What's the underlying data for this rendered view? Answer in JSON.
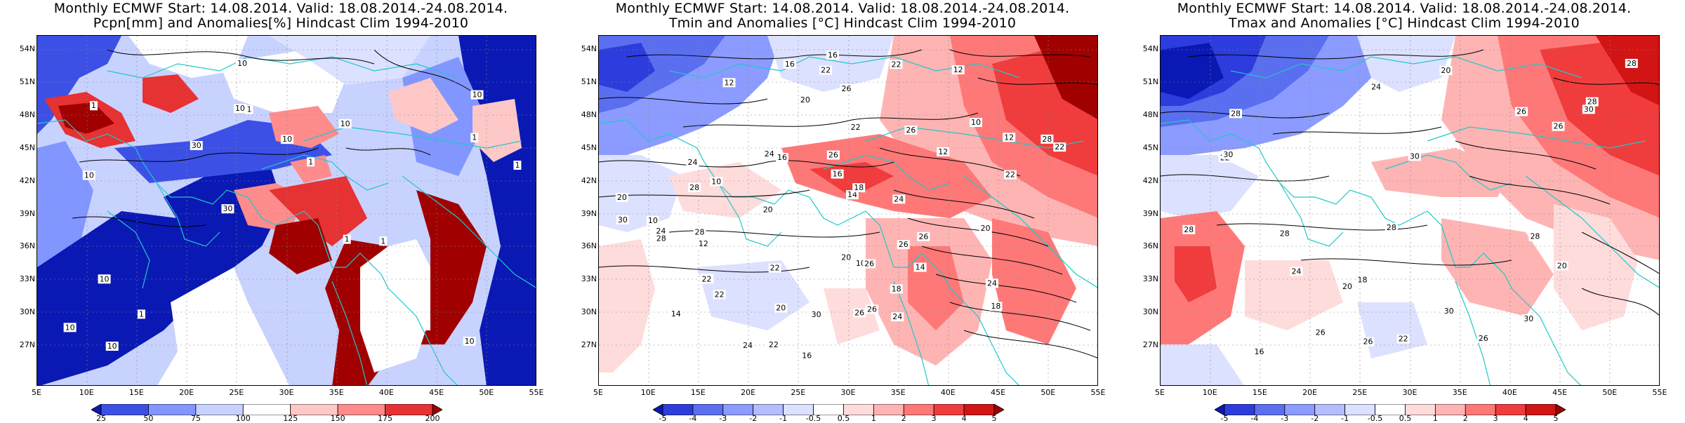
{
  "panels": [
    {
      "title_line1": "Monthly ECMWF Start: 14.08.2014. Valid: 18.08.2014.-24.08.2014.",
      "title_line2": "Pcpn[mm] and Anomalies[%] Hindcast Clim 1994-2010",
      "colorbar": {
        "colors": [
          "#0a19b4",
          "#3c50e6",
          "#8296ff",
          "#c8d2ff",
          "#ffffff",
          "#ffc8c8",
          "#ff8c8c",
          "#e63232",
          "#a00000"
        ],
        "labels": [
          "25",
          "50",
          "75",
          "100",
          "125",
          "150",
          "175",
          "200"
        ]
      },
      "contour_labels": [
        "10",
        "10",
        "10",
        "30",
        "10",
        "10",
        "10",
        "10",
        "10",
        "30",
        "10",
        "1",
        "1",
        "1",
        "1",
        "1",
        "10",
        "1",
        "1",
        "1"
      ]
    },
    {
      "title_line1": "Monthly ECMWF Start: 14.08.2014. Valid: 18.08.2014.-24.08.2014.",
      "title_line2": "Tmin and Anomalies [°C] Hindcast Clim 1994-2010",
      "colorbar": {
        "colors": [
          "#0a19b4",
          "#2d3cdc",
          "#5a6ef0",
          "#8c9bff",
          "#b4beff",
          "#dce1ff",
          "#ffffff",
          "#ffdcdc",
          "#ffb4b4",
          "#ff7878",
          "#f03c3c",
          "#d21414",
          "#a00000"
        ],
        "labels": [
          "-5",
          "-4",
          "-3",
          "-2",
          "-1",
          "-0.5",
          "0.5",
          "1",
          "2",
          "3",
          "4",
          "5"
        ]
      },
      "contour_labels": [
        "14",
        "12",
        "12",
        "10",
        "10",
        "10",
        "12",
        "14",
        "12",
        "12",
        "10",
        "16",
        "14",
        "14",
        "16",
        "16",
        "18",
        "20",
        "22",
        "22",
        "24",
        "22",
        "20",
        "18",
        "16",
        "20",
        "24",
        "22",
        "22",
        "26",
        "24",
        "22",
        "26",
        "20",
        "24",
        "28",
        "28",
        "24",
        "26",
        "20",
        "22",
        "26",
        "30",
        "28",
        "30",
        "28",
        "26",
        "26",
        "22",
        "18",
        "16",
        "24",
        "26",
        "22",
        "20",
        "26",
        "24"
      ]
    },
    {
      "title_line1": "Monthly ECMWF Start: 14.08.2014. Valid: 18.08.2014.-24.08.2014.",
      "title_line2": "Tmax and Anomalies [°C] Hindcast Clim 1994-2010",
      "colorbar": {
        "colors": [
          "#0a19b4",
          "#2d3cdc",
          "#5a6ef0",
          "#8c9bff",
          "#b4beff",
          "#dce1ff",
          "#ffffff",
          "#ffdcdc",
          "#ffb4b4",
          "#ff7878",
          "#f03c3c",
          "#d21414",
          "#a00000"
        ],
        "labels": [
          "-5",
          "-4",
          "-3",
          "-2",
          "-1",
          "-0.5",
          "0.5",
          "1",
          "2",
          "3",
          "4",
          "5"
        ]
      },
      "contour_labels": [
        "20",
        "18",
        "20",
        "16",
        "24",
        "26",
        "28",
        "28",
        "30",
        "22",
        "28",
        "26",
        "30",
        "28",
        "30",
        "26",
        "28",
        "28",
        "30",
        "28",
        "26",
        "30",
        "26",
        "20",
        "24",
        "22"
      ]
    }
  ],
  "axes": {
    "lat_labels": [
      "54N",
      "51N",
      "48N",
      "45N",
      "42N",
      "39N",
      "36N",
      "33N",
      "30N",
      "27N"
    ],
    "lon_labels": [
      "5E",
      "10E",
      "15E",
      "20E",
      "25E",
      "30E",
      "35E",
      "40E",
      "45E",
      "50E",
      "55E"
    ]
  }
}
